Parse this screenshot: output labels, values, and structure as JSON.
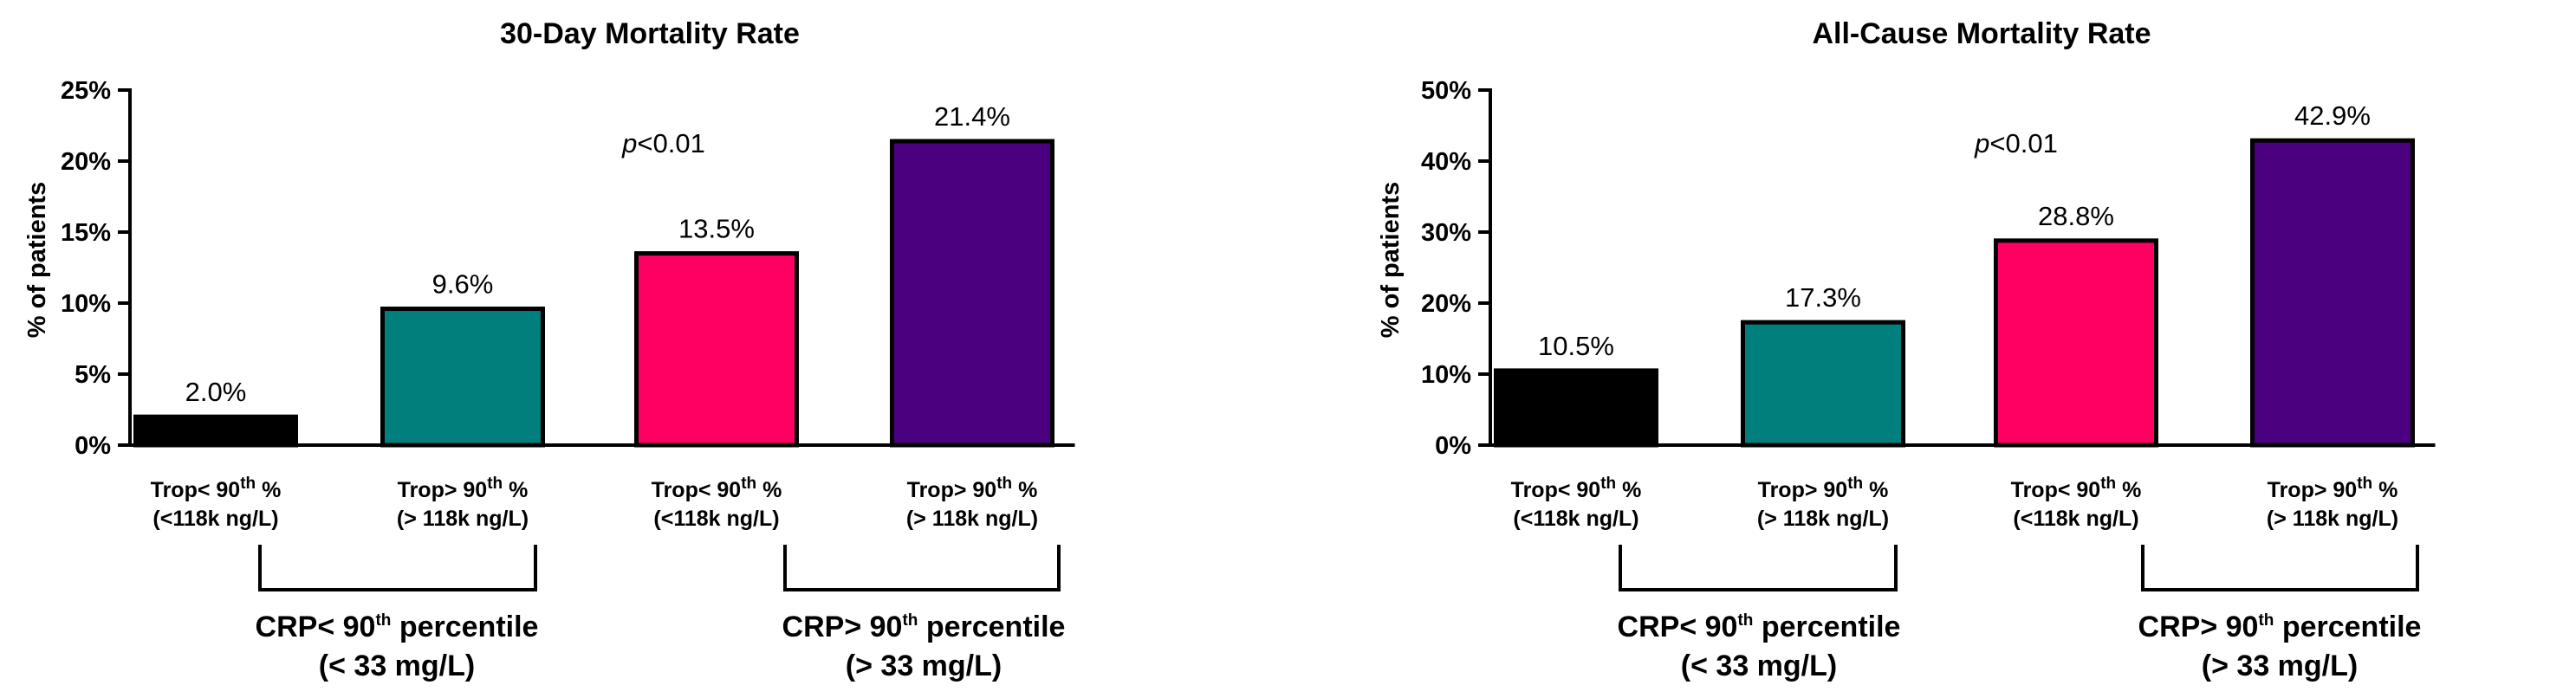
{
  "chart_data": [
    {
      "type": "bar",
      "title": "30-Day Mortality Rate",
      "ylabel": "% of patients",
      "ylim": [
        0,
        25
      ],
      "yticks": [
        0,
        5,
        10,
        15,
        20,
        25
      ],
      "yticklabels": [
        "0%",
        "5%",
        "10%",
        "15%",
        "20%",
        "25%"
      ],
      "annotation": {
        "italic": "p",
        "rest": "<0.01"
      },
      "categories": [
        {
          "line1": [
            "Trop< 90",
            "th",
            " %"
          ],
          "line2": "(<118k ng/L)"
        },
        {
          "line1": [
            "Trop> 90",
            "th",
            " %"
          ],
          "line2": "(> 118k ng/L)"
        },
        {
          "line1": [
            "Trop< 90",
            "th",
            " %"
          ],
          "line2": "(<118k ng/L)"
        },
        {
          "line1": [
            "Trop> 90",
            "th",
            " %"
          ],
          "line2": "(> 118k ng/L)"
        }
      ],
      "values": [
        2.0,
        9.6,
        13.5,
        21.4
      ],
      "value_labels": [
        "2.0%",
        "9.6%",
        "13.5%",
        "21.4%"
      ],
      "colors": [
        "#000000",
        "#007f7c",
        "#ff0062",
        "#4b0080"
      ],
      "groups": [
        {
          "line1": [
            "CRP< 90",
            "th",
            " percentile"
          ],
          "line2": "(< 33 mg/L)"
        },
        {
          "line1": [
            "CRP> 90",
            "th",
            " percentile"
          ],
          "line2": "(> 33 mg/L)"
        }
      ]
    },
    {
      "type": "bar",
      "title": "All-Cause Mortality Rate",
      "ylabel": "% of patients",
      "ylim": [
        0,
        50
      ],
      "yticks": [
        0,
        10,
        20,
        30,
        40,
        50
      ],
      "yticklabels": [
        "0%",
        "10%",
        "20%",
        "30%",
        "40%",
        "50%"
      ],
      "annotation": {
        "italic": "p",
        "rest": "<0.01"
      },
      "categories": [
        {
          "line1": [
            "Trop< 90",
            "th",
            " %"
          ],
          "line2": "(<118k ng/L)"
        },
        {
          "line1": [
            "Trop> 90",
            "th",
            " %"
          ],
          "line2": "(> 118k ng/L)"
        },
        {
          "line1": [
            "Trop< 90",
            "th",
            " %"
          ],
          "line2": "(<118k ng/L)"
        },
        {
          "line1": [
            "Trop> 90",
            "th",
            " %"
          ],
          "line2": "(> 118k ng/L)"
        }
      ],
      "values": [
        10.5,
        17.3,
        28.8,
        42.9
      ],
      "value_labels": [
        "10.5%",
        "17.3%",
        "28.8%",
        "42.9%"
      ],
      "colors": [
        "#000000",
        "#007f7c",
        "#ff0062",
        "#4b0080"
      ],
      "groups": [
        {
          "line1": [
            "CRP< 90",
            "th",
            " percentile"
          ],
          "line2": "(< 33 mg/L)"
        },
        {
          "line1": [
            "CRP> 90",
            "th",
            " percentile"
          ],
          "line2": "(> 33 mg/L)"
        }
      ]
    }
  ]
}
